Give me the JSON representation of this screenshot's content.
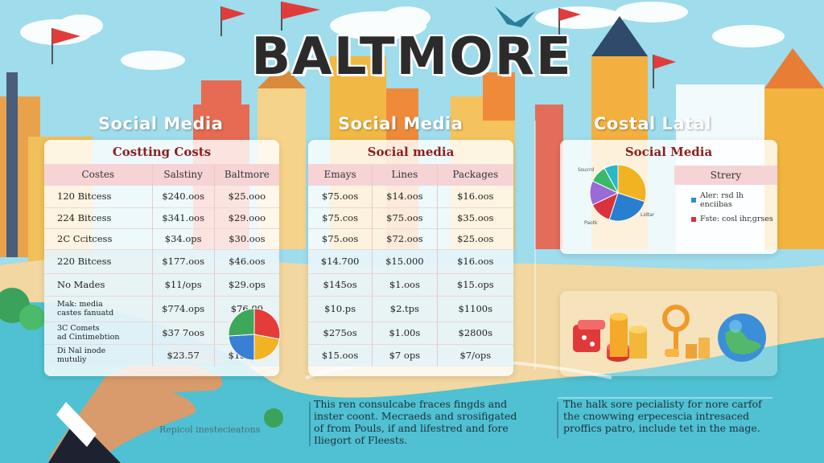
{
  "title": "BALTMORE",
  "headings": [
    "Social Media",
    "Social Media",
    "Costal Latal"
  ],
  "colors": {
    "sky": "#8fd3e8",
    "water": "#4fc1d2",
    "header_row": "#f6d4d6",
    "panel_title": "#8b1f1f",
    "flag": "#e23b3b"
  },
  "left_table": {
    "title": "Costting Costs",
    "headers": [
      "Costes",
      "Salstiny",
      "Baltmore"
    ],
    "rows": [
      [
        "120 Bitcess",
        "$240.oos",
        "$25.ooo"
      ],
      [
        "224 Bitcess",
        "$341.oos",
        "$29.ooo"
      ],
      [
        "2C Ccitcess",
        "$34.ops",
        "$30.oos"
      ],
      [
        "220 Bitcess",
        "$177.oos",
        "$46.oos"
      ],
      [
        "No Mades",
        "$11/ops",
        "$29.ops"
      ],
      [
        "Mak: media\ncastes fanuatd",
        "$774.ops",
        "$76.00"
      ],
      [
        "3C Comets\nad Cintimebtion",
        "$37 7oos",
        "$"
      ],
      [
        "Di Nal inode\nmutuliy",
        "$23.57",
        "$13.ooo"
      ]
    ]
  },
  "middle_table": {
    "title": "Social media",
    "headers": [
      "Emays",
      "Lines",
      "Packages"
    ],
    "rows": [
      [
        "$75.oos",
        "$14.oos",
        "$16.oos"
      ],
      [
        "$75.cos",
        "$75.oos",
        "$35.oos"
      ],
      [
        "$75.oos",
        "$72.oos",
        "$25.oos"
      ],
      [
        "$14.700",
        "$15.000",
        "$16.oos"
      ],
      [
        "$145os",
        "$1.oos",
        "$15.ops"
      ],
      [
        "$10.ps",
        "$2.tps",
        "$1100s"
      ],
      [
        "$275os",
        "$1.00s",
        "$2800s"
      ],
      [
        "$15.oos",
        "$7 ops",
        "$7/ops"
      ]
    ]
  },
  "right_panel": {
    "title": "Social Media",
    "header": "Strery",
    "pie_labels": [
      "Ssucrd",
      "Paotk",
      "Lidtar"
    ],
    "legend": [
      {
        "label": "Aler: rsd lh enciibas",
        "color": "#2a8fd0"
      },
      {
        "label": "Fste: cosl ihr,grses",
        "color": "#d8323a"
      }
    ]
  },
  "pie_left": {
    "slices": [
      {
        "value": 28,
        "color": "#e63b3b"
      },
      {
        "value": 22,
        "color": "#f2b322"
      },
      {
        "value": 24,
        "color": "#3a7fd5"
      },
      {
        "value": 26,
        "color": "#3da85a"
      }
    ]
  },
  "pie_right": {
    "slices": [
      {
        "value": 30,
        "color": "#f2b322"
      },
      {
        "value": 25,
        "color": "#2a7ed0"
      },
      {
        "value": 13,
        "color": "#d8323a"
      },
      {
        "value": 14,
        "color": "#9a6ad6"
      },
      {
        "value": 10,
        "color": "#3cb86a"
      },
      {
        "value": 8,
        "color": "#29b7c9"
      }
    ]
  },
  "descriptions": {
    "middle": "This ren consulcabe fraces fingds and inster coont. Mecraeds and srosifigated of from Pouls, if and lifestred and fore Iliegort of Fleests.",
    "right": "The halk sore pecialisty for nore carfof the cnowwing erpecescia intresaced proffics patro, include tet in the mage."
  },
  "caption": "Repicol inestecieatons"
}
